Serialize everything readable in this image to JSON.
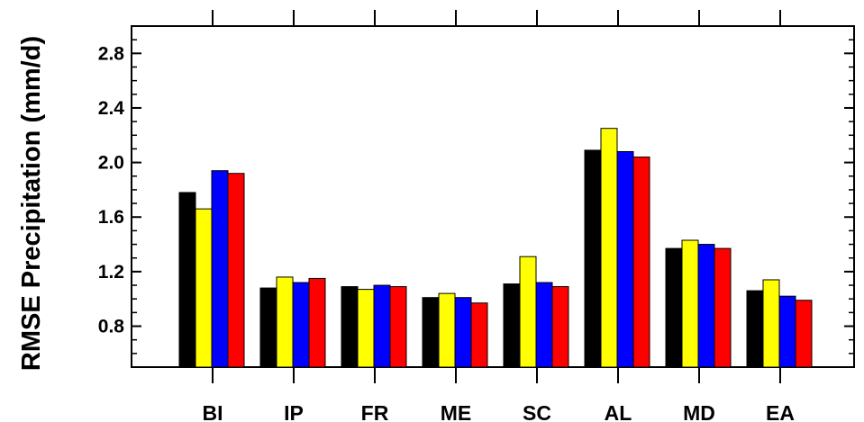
{
  "chart_data": {
    "type": "bar",
    "title": "",
    "xlabel": "",
    "ylabel": "RMSE Precipitation (mm/d)",
    "ylim": [
      0.5,
      3.0
    ],
    "yticks": [
      "0.8",
      "1.2",
      "1.6",
      "2.0",
      "2.4",
      "2.8"
    ],
    "grid": false,
    "categories": [
      "BI",
      "IP",
      "FR",
      "ME",
      "SC",
      "AL",
      "MD",
      "EA"
    ],
    "series": [
      {
        "color": "#000000",
        "values": [
          1.78,
          1.08,
          1.09,
          1.01,
          1.11,
          2.09,
          1.37,
          1.06
        ]
      },
      {
        "color": "#ffff00",
        "values": [
          1.66,
          1.16,
          1.07,
          1.04,
          1.31,
          2.25,
          1.43,
          1.14
        ]
      },
      {
        "color": "#0000ff",
        "values": [
          1.94,
          1.12,
          1.1,
          1.01,
          1.12,
          2.08,
          1.4,
          1.02
        ]
      },
      {
        "color": "#ff0000",
        "values": [
          1.92,
          1.15,
          1.09,
          0.97,
          1.09,
          2.04,
          1.37,
          0.99
        ]
      }
    ]
  }
}
